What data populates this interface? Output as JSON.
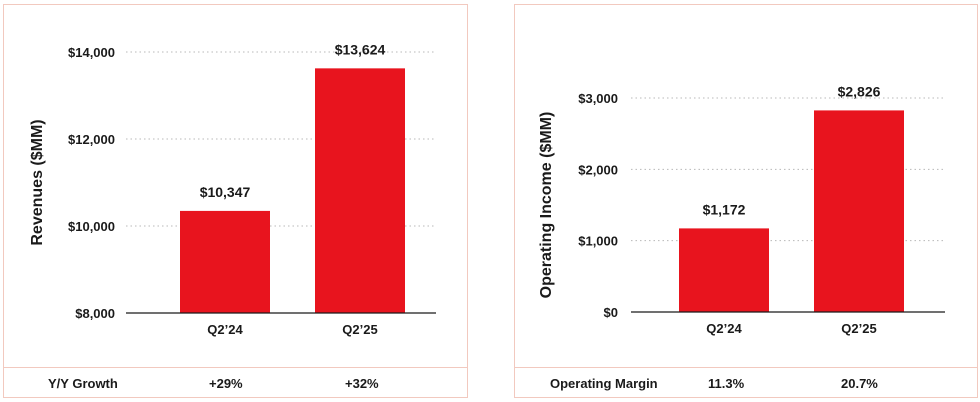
{
  "chart_data": [
    {
      "type": "bar",
      "categories": [
        "Q2’24",
        "Q2’25"
      ],
      "values": [
        10347,
        13624
      ],
      "value_labels": [
        "$10,347",
        "$13,624"
      ],
      "ylabel": "Revenues  ($MM)",
      "ylim": [
        8000,
        14000
      ],
      "yticks": [
        8000,
        10000,
        12000,
        14000
      ],
      "ytick_labels": [
        "$8,000",
        "$10,000",
        "$12,000",
        "$14,000"
      ],
      "bar_color": "#e8141e",
      "grid": "dotted",
      "footer": {
        "label": "Y/Y Growth",
        "values": [
          "+29%",
          "+32%"
        ]
      }
    },
    {
      "type": "bar",
      "categories": [
        "Q2’24",
        "Q2’25"
      ],
      "values": [
        1172,
        2826
      ],
      "value_labels": [
        "$1,172",
        "$2,826"
      ],
      "ylabel": "Operating Income ($MM)",
      "ylim": [
        0,
        3000
      ],
      "yticks": [
        0,
        1000,
        2000,
        3000
      ],
      "ytick_labels": [
        "$0",
        "$1,000",
        "$2,000",
        "$3,000"
      ],
      "bar_color": "#e8141e",
      "grid": "dotted",
      "footer": {
        "label": "Operating Margin",
        "values": [
          "11.3%",
          "20.7%"
        ]
      }
    }
  ]
}
